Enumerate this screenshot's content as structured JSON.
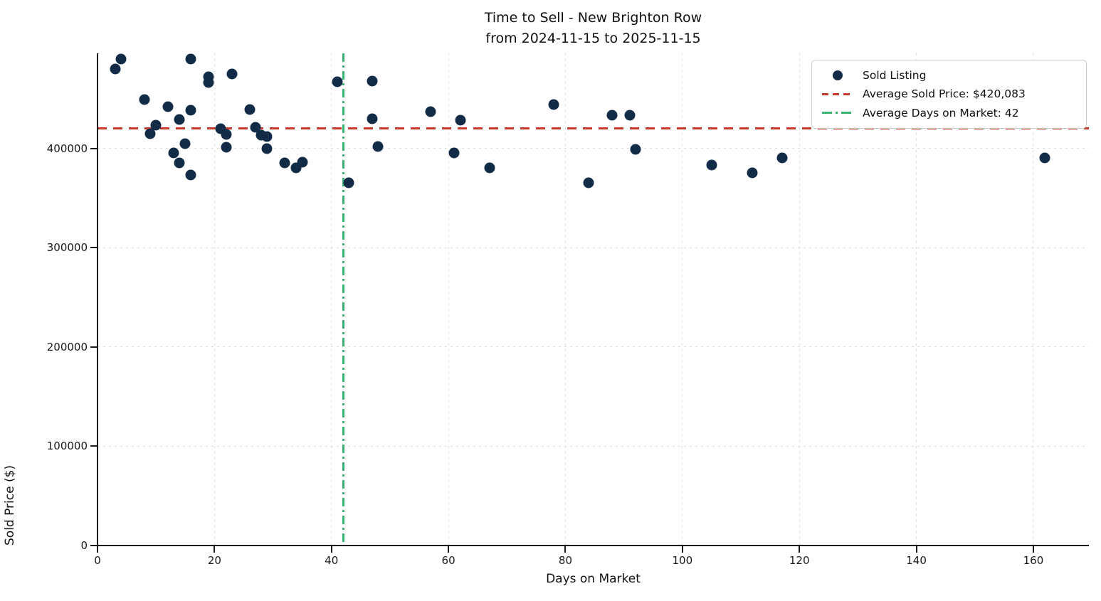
{
  "chart_data": {
    "type": "scatter",
    "title": "Time to Sell - New Brighton Row",
    "subtitle": "from 2024-11-15 to 2025-11-15",
    "xlabel": "Days on Market",
    "ylabel": "Sold Price ($)",
    "xlim": [
      0,
      169.5
    ],
    "ylim": [
      0,
      495700
    ],
    "x_ticks": [
      0,
      20,
      40,
      60,
      80,
      100,
      120,
      140,
      160
    ],
    "y_ticks": [
      0,
      100000,
      200000,
      300000,
      400000
    ],
    "grid": true,
    "legend_position": "upper right",
    "series": [
      {
        "name": "Sold Listing",
        "type": "scatter",
        "color": "#122b47",
        "points": [
          [
            3,
            480000
          ],
          [
            4,
            490000
          ],
          [
            8,
            449000
          ],
          [
            9,
            415000
          ],
          [
            10,
            423000
          ],
          [
            12,
            442000
          ],
          [
            13,
            395000
          ],
          [
            14,
            429000
          ],
          [
            14,
            385000
          ],
          [
            15,
            405000
          ],
          [
            16,
            490000
          ],
          [
            16,
            438000
          ],
          [
            16,
            373000
          ],
          [
            19,
            472000
          ],
          [
            19,
            466000
          ],
          [
            21,
            420000
          ],
          [
            22,
            414000
          ],
          [
            22,
            401000
          ],
          [
            23,
            475000
          ],
          [
            26,
            439000
          ],
          [
            27,
            421000
          ],
          [
            28,
            413000
          ],
          [
            29,
            412000
          ],
          [
            29,
            400000
          ],
          [
            32,
            385000
          ],
          [
            34,
            380000
          ],
          [
            35,
            386000
          ],
          [
            41,
            467000
          ],
          [
            43,
            365000
          ],
          [
            47,
            468000
          ],
          [
            47,
            430000
          ],
          [
            48,
            402000
          ],
          [
            57,
            437000
          ],
          [
            61,
            395000
          ],
          [
            62,
            428000
          ],
          [
            67,
            380000
          ],
          [
            78,
            444000
          ],
          [
            84,
            365000
          ],
          [
            88,
            433000
          ],
          [
            91,
            433000
          ],
          [
            92,
            399000
          ],
          [
            105,
            383000
          ],
          [
            112,
            375000
          ],
          [
            117,
            390000
          ],
          [
            162,
            390000
          ]
        ]
      }
    ],
    "reference_lines": {
      "avg_sold_price": {
        "value": 420083,
        "color": "#c43a2d",
        "style": "dashed",
        "orientation": "horizontal"
      },
      "avg_days_on_market": {
        "value": 42,
        "color": "#3bb273",
        "style": "dashdot",
        "orientation": "vertical"
      }
    }
  },
  "legend": {
    "items": [
      {
        "label": "Sold Listing",
        "marker": "dot",
        "color": "#122b47"
      },
      {
        "label": "Average Sold Price: $420,083",
        "marker": "dashed-line",
        "color": "#c43a2d"
      },
      {
        "label": "Average Days on Market: 42",
        "marker": "dashdot-line",
        "color": "#3bb273"
      }
    ]
  }
}
